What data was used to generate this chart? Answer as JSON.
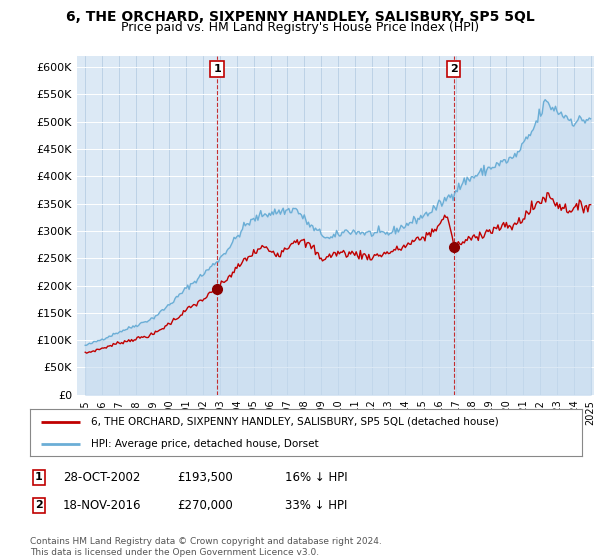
{
  "title": "6, THE ORCHARD, SIXPENNY HANDLEY, SALISBURY, SP5 5QL",
  "subtitle": "Price paid vs. HM Land Registry's House Price Index (HPI)",
  "ylim": [
    0,
    620000
  ],
  "yticks": [
    0,
    50000,
    100000,
    150000,
    200000,
    250000,
    300000,
    350000,
    400000,
    450000,
    500000,
    550000,
    600000
  ],
  "ytick_labels": [
    "£0",
    "£50K",
    "£100K",
    "£150K",
    "£200K",
    "£250K",
    "£300K",
    "£350K",
    "£400K",
    "£450K",
    "£500K",
    "£550K",
    "£600K"
  ],
  "hpi_color": "#6baed6",
  "hpi_fill_color": "#c6dbef",
  "price_color": "#c00000",
  "marker_color": "#8b0000",
  "sale1_x": 2002.83,
  "sale1_y": 193500,
  "sale2_x": 2016.88,
  "sale2_y": 270000,
  "legend_line1": "6, THE ORCHARD, SIXPENNY HANDLEY, SALISBURY, SP5 5QL (detached house)",
  "legend_line2": "HPI: Average price, detached house, Dorset",
  "table_rows": [
    [
      "1",
      "28-OCT-2002",
      "£193,500",
      "16% ↓ HPI"
    ],
    [
      "2",
      "18-NOV-2016",
      "£270,000",
      "33% ↓ HPI"
    ]
  ],
  "footer": "Contains HM Land Registry data © Crown copyright and database right 2024.\nThis data is licensed under the Open Government Licence v3.0.",
  "bg_color": "#ffffff",
  "plot_bg_color": "#dce9f5",
  "grid_color": "#b0c8e0",
  "xlim_left": 1995.0,
  "xlim_right": 2025.2
}
